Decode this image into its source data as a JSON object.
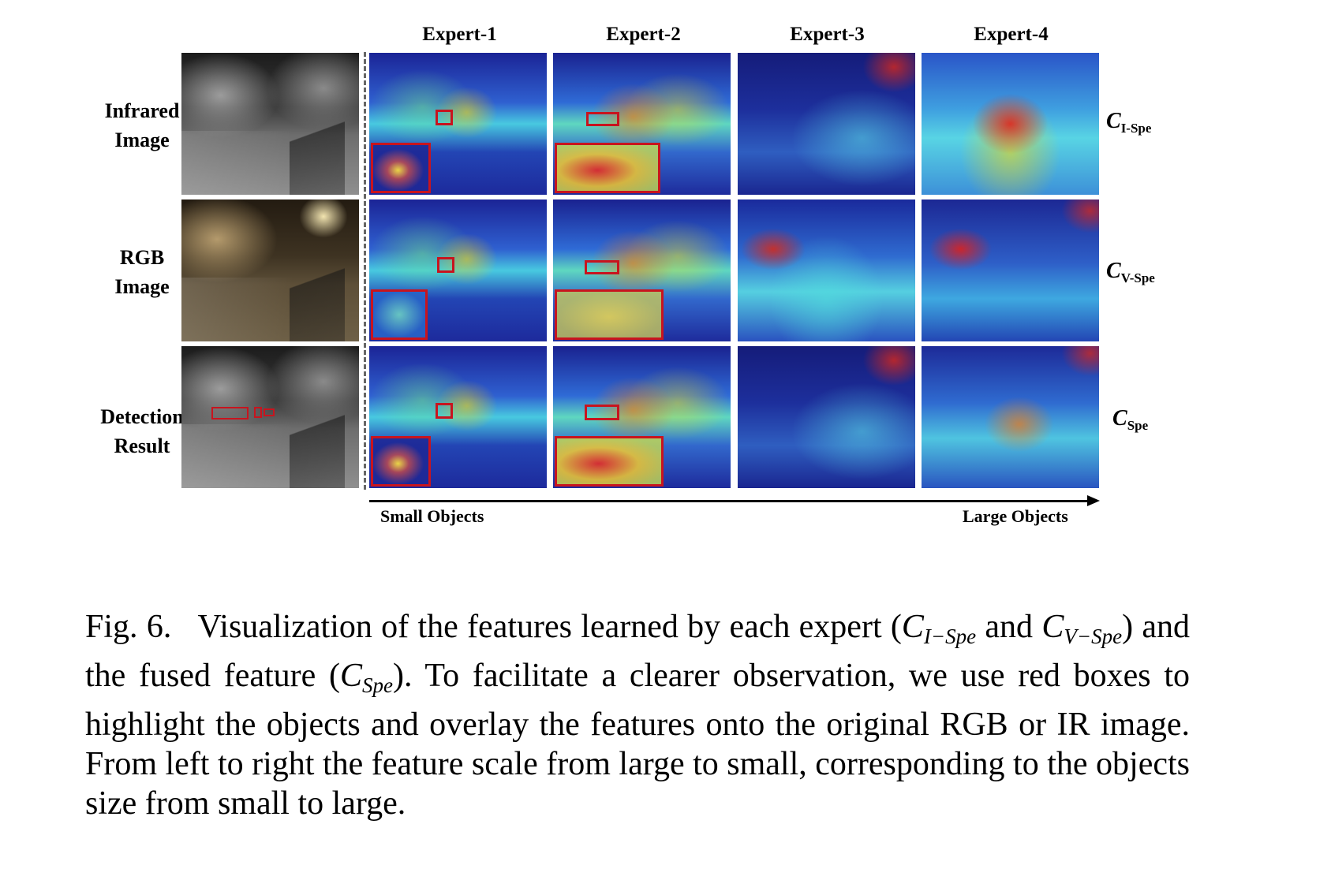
{
  "columns": [
    "Expert-1",
    "Expert-2",
    "Expert-3",
    "Expert-4"
  ],
  "rows": [
    {
      "label_line1": "Infrared",
      "label_line2": "Image",
      "side_main": "C",
      "side_sub": "I-Spe"
    },
    {
      "label_line1": "RGB",
      "label_line2": "Image",
      "side_main": "C",
      "side_sub": "V-Spe"
    },
    {
      "label_line1": "Detection",
      "label_line2": "Result",
      "side_main": "C",
      "side_sub": "Spe"
    }
  ],
  "axis": {
    "left": "Small Objects",
    "right": "Large Objects"
  },
  "caption": {
    "fig": "Fig. 6.",
    "t1": "Visualization of the features learned by each expert (",
    "c1": "C",
    "c1_sub": "I−Spe",
    "t2": " and ",
    "c2": "C",
    "c2_sub": "V−Spe",
    "t3": ") and the fused feature (",
    "c3": "C",
    "c3_sub": "Spe",
    "t4": "). To facilitate a clearer observation, we use red boxes to highlight the objects and overlay the features onto the original RGB or IR image. From left to right the feature scale from large to small, corresponding to the objects size from small to large."
  },
  "colors": {
    "box": "#c8141e"
  }
}
